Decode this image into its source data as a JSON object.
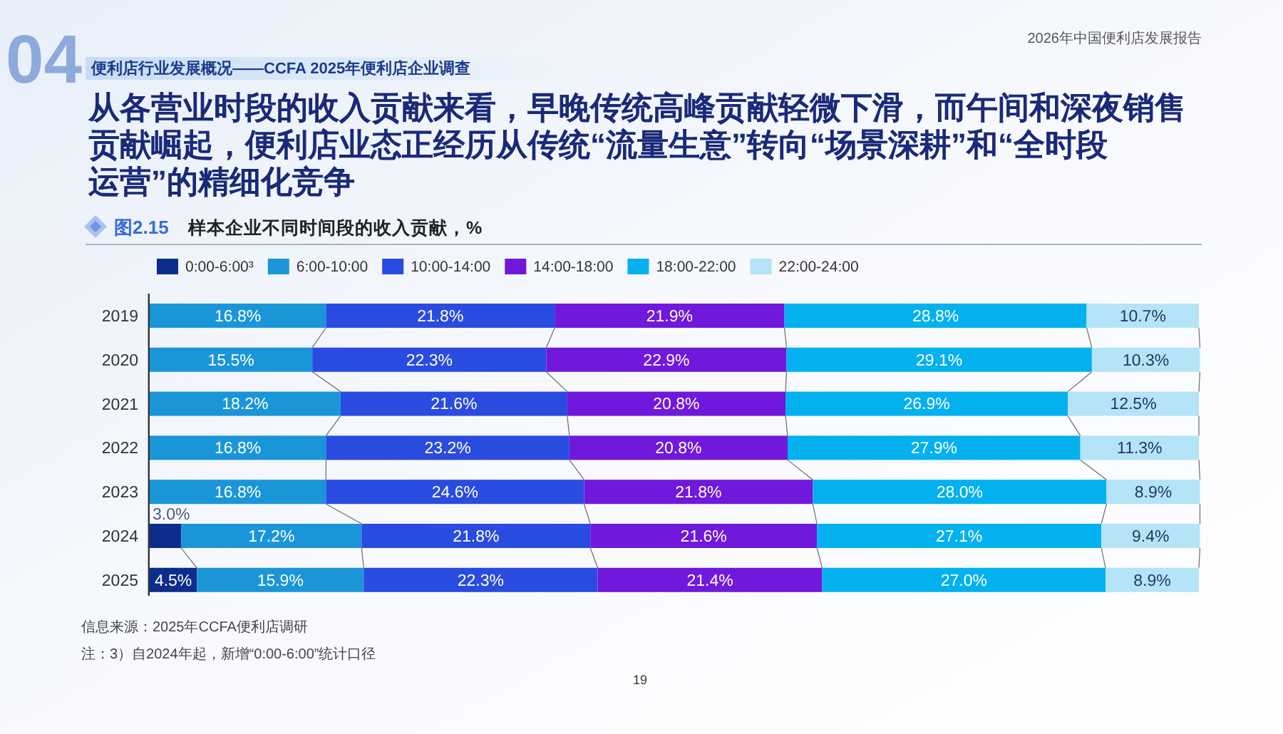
{
  "chart_data": {
    "type": "bar",
    "orientation": "horizontal",
    "stacked": true,
    "title": "从各营业时段的收入贡献来看，早晚传统高峰贡献轻微下滑，而午间和深夜销售贡献崛起，便利店业态正经历从传统“流量生意”转向“场景深耕”和“全时段运营”的精细化竞争",
    "subtitle": "样本企业不同时间段的收入贡献，%",
    "categories": [
      "2019",
      "2020",
      "2021",
      "2022",
      "2023",
      "2024",
      "2025"
    ],
    "series": [
      {
        "name": "0:00-6:00³",
        "color": "#0d2d8c",
        "values": [
          null,
          null,
          null,
          null,
          null,
          3.0,
          4.5
        ],
        "value_labels": [
          null,
          null,
          null,
          null,
          null,
          "3.0%",
          "4.5%"
        ]
      },
      {
        "name": "6:00-10:00",
        "color": "#1a96d8",
        "values": [
          16.8,
          15.5,
          18.2,
          16.8,
          16.8,
          17.2,
          15.9
        ],
        "value_labels": [
          "16.8%",
          "15.5%",
          "18.2%",
          "16.8%",
          "16.8%",
          "17.2%",
          "15.9%"
        ]
      },
      {
        "name": "10:00-14:00",
        "color": "#2a4be0",
        "values": [
          21.8,
          22.3,
          21.6,
          23.2,
          24.6,
          21.8,
          22.3
        ],
        "value_labels": [
          "21.8%",
          "22.3%",
          "21.6%",
          "23.2%",
          "24.6%",
          "21.8%",
          "22.3%"
        ]
      },
      {
        "name": "14:00-18:00",
        "color": "#7018dc",
        "values": [
          21.9,
          22.9,
          20.8,
          20.8,
          21.8,
          21.6,
          21.4
        ],
        "value_labels": [
          "21.9%",
          "22.9%",
          "20.8%",
          "20.8%",
          "21.8%",
          "21.6%",
          "21.4%"
        ]
      },
      {
        "name": "18:00-22:00",
        "color": "#03b1ef",
        "values": [
          28.8,
          29.1,
          26.9,
          27.9,
          28.0,
          27.1,
          27.0
        ],
        "value_labels": [
          "28.8%",
          "29.1%",
          "26.9%",
          "27.9%",
          "28.0%",
          "27.1%",
          "27.0%"
        ]
      },
      {
        "name": "22:00-24:00",
        "color": "#b5e3f8",
        "values": [
          10.7,
          10.3,
          12.5,
          11.3,
          8.9,
          9.4,
          8.9
        ],
        "value_labels": [
          "10.7%",
          "10.3%",
          "12.5%",
          "11.3%",
          "8.9%",
          "9.4%",
          "8.9%"
        ]
      }
    ],
    "xlim": [
      0,
      100
    ],
    "legend": "top",
    "tick_labels": "y",
    "annotations": [
      "04",
      "2026年中国便利店发展报告",
      "便利店行业发展概况——CCFA 2025年便利店企业调查",
      "图2.15",
      "信息来源：2025年CCFA便利店调研",
      "注：3）自2024年起，新增“0:00-6:00”统计口径",
      "19"
    ]
  }
}
